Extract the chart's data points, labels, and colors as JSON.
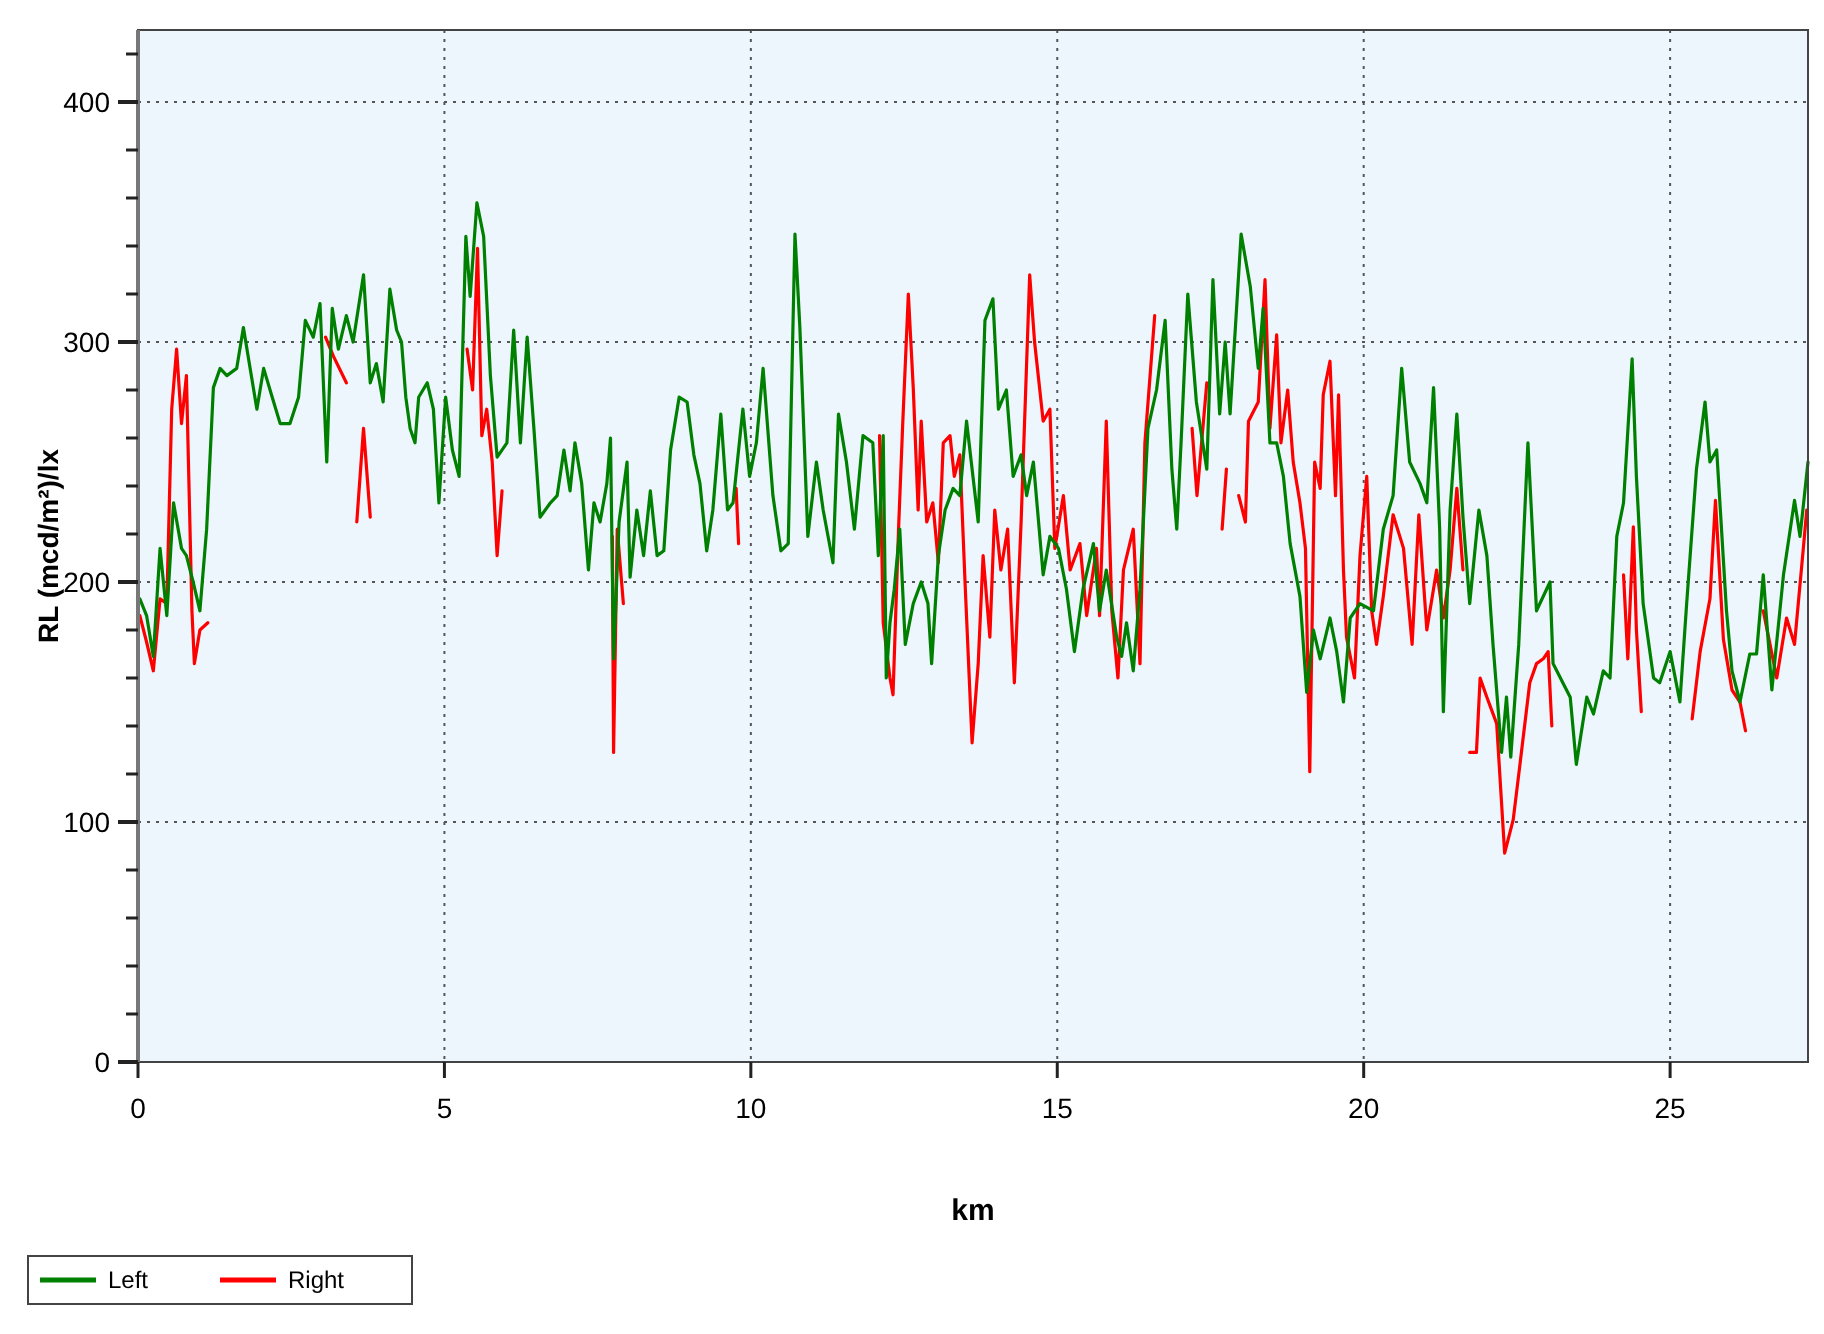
{
  "chart_data": {
    "type": "line",
    "xlabel": "km",
    "ylabel": "RL (mcd/m²)/lx",
    "xlim": [
      0,
      27.25
    ],
    "ylim": [
      0,
      430
    ],
    "xticks": [
      0,
      5,
      10,
      15,
      20,
      25
    ],
    "yticks": [
      0,
      {
        "value": 20,
        "label": null
      },
      {
        "value": 40,
        "label": null
      },
      {
        "value": 60,
        "label": null
      },
      {
        "value": 80,
        "label": null
      },
      100,
      {
        "value": 120,
        "label": null
      },
      {
        "value": 140,
        "label": null
      },
      {
        "value": 160,
        "label": null
      },
      {
        "value": 180,
        "label": null
      },
      200,
      {
        "value": 220,
        "label": null
      },
      {
        "value": 240,
        "label": null
      },
      {
        "value": 260,
        "label": null
      },
      {
        "value": 280,
        "label": null
      },
      300,
      {
        "value": 320,
        "label": null
      },
      {
        "value": 340,
        "label": null
      },
      {
        "value": 360,
        "label": null
      },
      {
        "value": 380,
        "label": null
      },
      400,
      {
        "value": 420,
        "label": null
      }
    ],
    "grid": true,
    "legend": "bottom left",
    "line_style": "solid",
    "marker": "none",
    "series": [
      {
        "name": "Left",
        "color": "#008000",
        "x": [
          0.03,
          0.14,
          0.25,
          0.36,
          0.47,
          0.58,
          0.71,
          0.79,
          0.9,
          1.01,
          1.12,
          1.23,
          1.34,
          1.45,
          1.61,
          1.72,
          1.83,
          1.94,
          2.05,
          2.19,
          2.32,
          2.48,
          2.62,
          2.73,
          2.86,
          2.97,
          3.08,
          3.17,
          3.27,
          3.4,
          3.51,
          3.68,
          3.79,
          3.89,
          4.0,
          4.11,
          4.22,
          4.3,
          4.37,
          4.44,
          4.52,
          4.58,
          4.72,
          4.82,
          4.91,
          5.02,
          5.13,
          5.24,
          5.35,
          5.42,
          5.53,
          5.64,
          5.75,
          5.86,
          6.02,
          6.13,
          6.24,
          6.35,
          6.46,
          6.56,
          6.73,
          6.84,
          6.95,
          7.05,
          7.13,
          7.24,
          7.35,
          7.44,
          7.54,
          7.65,
          7.71,
          7.76,
          7.85,
          7.98,
          8.03,
          8.14,
          8.25,
          8.36,
          8.47,
          8.58,
          8.69,
          8.83,
          8.96,
          9.07,
          9.17,
          9.28,
          9.38,
          9.51,
          9.62,
          9.71,
          9.87,
          9.98,
          10.09,
          10.2,
          10.36,
          10.49,
          10.61,
          10.72,
          10.8,
          10.93,
          11.07,
          11.18,
          11.34,
          11.43,
          11.56,
          11.69,
          11.83,
          11.99,
          12.08,
          12.16,
          12.21,
          12.27,
          12.34,
          12.43,
          12.52,
          12.65,
          12.78,
          12.89,
          12.95,
          13.06,
          13.17,
          13.3,
          13.41,
          13.52,
          13.71,
          13.82,
          13.95,
          14.04,
          14.17,
          14.28,
          14.41,
          14.5,
          14.61,
          14.77,
          14.88,
          15.02,
          15.15,
          15.28,
          15.42,
          15.59,
          15.69,
          15.8,
          15.97,
          16.05,
          16.13,
          16.24,
          16.35,
          16.48,
          16.62,
          16.76,
          16.87,
          16.95,
          17.02,
          17.13,
          17.27,
          17.44,
          17.54,
          17.65,
          17.74,
          17.82,
          18.0,
          18.15,
          18.28,
          18.36,
          18.47,
          18.58,
          18.69,
          18.8,
          18.96,
          19.07,
          19.18,
          19.29,
          19.45,
          19.56,
          19.67,
          19.78,
          19.94,
          20.16,
          20.32,
          20.48,
          20.62,
          20.75,
          20.92,
          21.03,
          21.14,
          21.24,
          21.3,
          21.41,
          21.52,
          21.62,
          21.73,
          21.88,
          22.01,
          22.11,
          22.25,
          22.33,
          22.4,
          22.53,
          22.68,
          22.82,
          23.04,
          23.09,
          23.37,
          23.47,
          23.64,
          23.75,
          23.91,
          24.02,
          24.13,
          24.24,
          24.38,
          24.45,
          24.56,
          24.73,
          24.83,
          25.0,
          25.16,
          25.27,
          25.43,
          25.57,
          25.65,
          25.76,
          25.92,
          26.01,
          26.14,
          26.3,
          26.41,
          26.52,
          26.66,
          26.85,
          27.03,
          27.12,
          27.25
        ],
        "values": [
          193,
          186,
          169,
          214,
          186,
          233,
          214,
          211,
          200,
          188,
          222,
          281,
          289,
          286,
          289,
          306,
          289,
          272,
          289,
          277,
          266,
          266,
          277,
          309,
          302,
          316,
          250,
          314,
          297,
          311,
          300,
          328,
          283,
          291,
          275,
          322,
          305,
          300,
          277,
          264,
          258,
          277,
          283,
          272,
          233,
          277,
          255,
          244,
          344,
          319,
          358,
          344,
          286,
          252,
          258,
          305,
          258,
          302,
          264,
          227,
          233,
          236,
          255,
          238,
          258,
          241,
          205,
          233,
          225,
          241,
          260,
          168,
          225,
          250,
          202,
          230,
          211,
          238,
          211,
          213,
          255,
          277,
          275,
          253,
          241,
          213,
          230,
          270,
          230,
          233,
          272,
          244,
          258,
          289,
          236,
          213,
          216,
          345,
          306,
          219,
          250,
          230,
          208,
          270,
          250,
          222,
          261,
          258,
          211,
          261,
          160,
          183,
          197,
          222,
          174,
          191,
          200,
          191,
          166,
          211,
          230,
          239,
          236,
          267,
          225,
          309,
          318,
          272,
          280,
          244,
          253,
          236,
          250,
          203,
          219,
          214,
          197,
          171,
          197,
          216,
          188,
          205,
          177,
          169,
          183,
          163,
          197,
          264,
          280,
          309,
          247,
          222,
          258,
          320,
          275,
          247,
          326,
          270,
          300,
          270,
          345,
          323,
          289,
          314,
          258,
          258,
          244,
          216,
          194,
          154,
          180,
          168,
          185,
          171,
          150,
          185,
          191,
          188,
          222,
          236,
          289,
          250,
          241,
          233,
          281,
          222,
          146,
          230,
          270,
          227,
          191,
          230,
          211,
          174,
          129,
          152,
          127,
          174,
          258,
          188,
          200,
          166,
          152,
          124,
          152,
          145,
          163,
          160,
          219,
          233,
          293,
          244,
          191,
          160,
          158,
          171,
          150,
          191,
          247,
          275,
          250,
          255,
          188,
          163,
          150,
          170,
          170,
          203,
          155,
          203,
          234,
          219,
          250
        ]
      },
      {
        "name": "Right",
        "color": "#ff0000",
        "x": [
          0.03,
          0.14,
          0.25,
          0.36,
          0.47,
          0.55,
          0.63,
          0.71,
          0.79,
          0.88,
          0.92,
          1.01,
          1.14,
          1.5,
          3.06,
          3.19,
          3.4,
          3.5,
          3.57,
          3.68,
          3.79,
          4.5,
          5.37,
          5.46,
          5.54,
          5.61,
          5.69,
          5.78,
          5.86,
          5.94,
          7.0,
          7.74,
          7.76,
          7.82,
          7.92,
          8.5,
          9.76,
          9.8,
          11.0,
          12.1,
          12.16,
          12.27,
          12.32,
          12.41,
          12.48,
          12.57,
          12.65,
          12.73,
          12.78,
          12.87,
          12.97,
          13.06,
          13.14,
          13.25,
          13.32,
          13.41,
          13.5,
          13.61,
          13.71,
          13.79,
          13.9,
          13.98,
          14.08,
          14.19,
          14.3,
          14.41,
          14.55,
          14.63,
          14.77,
          14.88,
          14.96,
          15.1,
          15.21,
          15.37,
          15.48,
          15.64,
          15.69,
          15.8,
          15.89,
          15.99,
          16.08,
          16.24,
          16.35,
          16.43,
          16.59,
          16.9,
          17.2,
          17.28,
          17.44,
          17.6,
          17.69,
          17.76,
          17.9,
          17.96,
          18.07,
          18.12,
          18.28,
          18.39,
          18.47,
          18.58,
          18.65,
          18.76,
          18.85,
          18.96,
          19.05,
          19.12,
          19.2,
          19.29,
          19.34,
          19.45,
          19.54,
          19.59,
          19.67,
          19.72,
          19.85,
          19.94,
          20.05,
          20.13,
          20.21,
          20.32,
          20.48,
          20.65,
          20.79,
          20.9,
          21.03,
          21.19,
          21.3,
          21.41,
          21.52,
          21.62,
          21.68,
          21.73,
          21.84,
          21.9,
          22.01,
          22.17,
          22.3,
          22.44,
          22.55,
          22.71,
          22.82,
          22.93,
          23.01,
          23.07,
          23.5,
          24.24,
          24.31,
          24.4,
          24.45,
          24.53,
          25.0,
          25.36,
          25.49,
          25.65,
          25.74,
          25.87,
          26.01,
          26.14,
          26.23,
          26.4,
          26.52,
          26.63,
          26.74,
          26.9,
          27.03,
          27.17,
          27.23
        ],
        "values": [
          186,
          175,
          163,
          193,
          191,
          272,
          297,
          266,
          286,
          188,
          166,
          180,
          183,
          null,
          302,
          294,
          283,
          null,
          225,
          264,
          227,
          null,
          297,
          280,
          339,
          261,
          272,
          250,
          211,
          238,
          null,
          219,
          129,
          222,
          191,
          null,
          239,
          216,
          null,
          261,
          183,
          160,
          153,
          222,
          267,
          320,
          281,
          230,
          267,
          225,
          233,
          208,
          258,
          261,
          244,
          253,
          197,
          133,
          166,
          211,
          177,
          230,
          205,
          222,
          158,
          225,
          328,
          300,
          267,
          272,
          214,
          236,
          205,
          216,
          186,
          214,
          186,
          267,
          188,
          160,
          205,
          222,
          166,
          258,
          311,
          null,
          264,
          236,
          283,
          null,
          222,
          247,
          null,
          236,
          225,
          267,
          275,
          326,
          264,
          303,
          258,
          280,
          250,
          233,
          214,
          121,
          250,
          239,
          278,
          292,
          236,
          278,
          205,
          177,
          160,
          211,
          244,
          188,
          174,
          194,
          228,
          214,
          174,
          228,
          180,
          205,
          185,
          205,
          239,
          205,
          null,
          129,
          129,
          160,
          152,
          141,
          87,
          101,
          124,
          158,
          166,
          168,
          171,
          140,
          null,
          203,
          168,
          223,
          180,
          146,
          null,
          143,
          171,
          193,
          234,
          176,
          155,
          150,
          138,
          null,
          188,
          174,
          160,
          185,
          174,
          213,
          230
        ]
      }
    ]
  }
}
